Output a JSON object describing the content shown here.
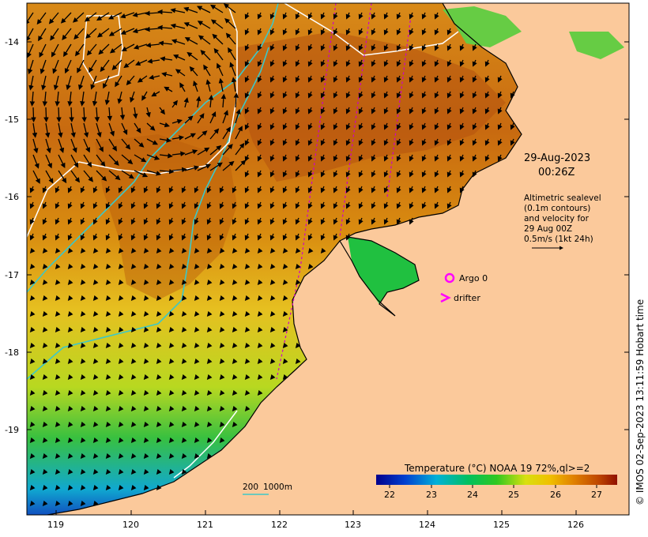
{
  "map": {
    "date": "29-Aug-2023",
    "time": "00:26Z",
    "legend_text_lines": [
      "Altimetric sealevel",
      "(0.1m contours)",
      "and velocity for",
      "29 Aug 00Z",
      "0.5m/s (1kt 24h)"
    ],
    "argo_label": "Argo 0",
    "drifter_label": "drifter",
    "scale_200": "200",
    "scale_1000": "1000m",
    "colorbar_title": "Temperature (°C) NOAA 19 72%,ql>=2",
    "colorbar_ticks": [
      "22",
      "23",
      "24",
      "25",
      "26",
      "27"
    ],
    "credit": "© IMOS 02-Sep-2023 13:11:59 Hobart time",
    "lat_ticks": [
      "-14",
      "-15",
      "-16",
      "-17",
      "-18",
      "-19"
    ],
    "lon_ticks": [
      "119",
      "120",
      "121",
      "122",
      "123",
      "124",
      "125",
      "126"
    ],
    "colors": {
      "land": "#fbc99b",
      "argo": "#ff00ff",
      "drifter": "#ff00ff",
      "contour_200": "#3cc8c8",
      "contour_sealevel": "#ffffff",
      "track": "#cc00cc"
    }
  }
}
